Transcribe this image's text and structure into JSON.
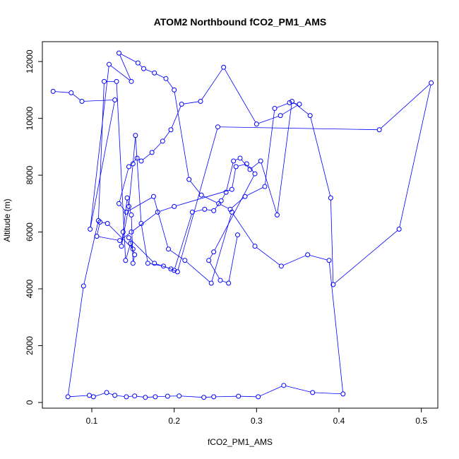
{
  "chart_data": {
    "type": "line",
    "title": "ATOM2 Northbound fCO2_PM1_AMS",
    "xlabel": "fCO2_PM1_AMS",
    "ylabel": "Altitude (m)",
    "xlim": [
      0.04,
      0.52
    ],
    "ylim": [
      -200,
      12700
    ],
    "x_ticks": [
      0.1,
      0.2,
      0.3,
      0.4,
      0.5
    ],
    "x_tick_labels": [
      "0.1",
      "0.2",
      "0.3",
      "0.4",
      "0.5"
    ],
    "y_ticks": [
      0,
      2000,
      4000,
      6000,
      8000,
      10000,
      12000
    ],
    "y_tick_labels": [
      "0",
      "2000",
      "4000",
      "6000",
      "8000",
      "10000",
      "12000"
    ],
    "grid": false,
    "legend": "none",
    "markers": "open-circle",
    "color": "#0000ff",
    "series": [
      {
        "x": [
          0.053,
          0.075,
          0.088,
          0.128,
          0.098,
          0.121,
          0.148,
          0.133,
          0.156,
          0.163,
          0.176,
          0.19,
          0.2,
          0.218,
          0.233,
          0.254,
          0.268,
          0.286,
          0.31,
          0.322,
          0.34,
          0.352,
          0.329,
          0.3,
          0.26,
          0.232,
          0.209,
          0.196,
          0.186,
          0.173,
          0.16,
          0.155,
          0.145,
          0.133,
          0.142,
          0.175,
          0.193,
          0.213,
          0.245,
          0.27,
          0.298,
          0.33,
          0.362,
          0.388,
          0.405,
          0.368,
          0.333,
          0.302,
          0.278,
          0.248,
          0.236,
          0.206,
          0.192,
          0.177,
          0.165,
          0.152,
          0.142,
          0.128,
          0.118,
          0.102,
          0.097,
          0.071,
          0.09,
          0.108,
          0.115,
          0.13,
          0.141,
          0.147,
          0.152,
          0.15,
          0.148,
          0.143,
          0.138,
          0.136,
          0.145,
          0.15,
          0.153,
          0.16,
          0.168,
          0.187,
          0.2,
          0.222,
          0.237,
          0.248,
          0.257,
          0.263,
          0.272,
          0.28,
          0.292,
          0.305,
          0.325,
          0.343,
          0.365,
          0.39,
          0.393,
          0.473,
          0.512,
          0.449,
          0.253,
          0.204,
          0.196,
          0.176,
          0.145,
          0.15,
          0.119,
          0.11,
          0.106,
          0.134,
          0.148,
          0.18,
          0.2,
          0.27,
          0.275,
          0.288,
          0.298,
          0.248,
          0.242,
          0.256,
          0.266,
          0.277
        ],
        "y": [
          10950,
          10900,
          10600,
          10650,
          6100,
          11900,
          11300,
          12300,
          11950,
          11750,
          11600,
          11400,
          11000,
          7850,
          7300,
          7000,
          6800,
          7250,
          7600,
          10350,
          10550,
          10500,
          10100,
          9800,
          11800,
          10600,
          10500,
          9600,
          9200,
          8800,
          8500,
          8600,
          8300,
          7000,
          6700,
          7250,
          5400,
          5000,
          4200,
          6700,
          5500,
          4800,
          5200,
          5000,
          300,
          350,
          600,
          200,
          220,
          200,
          180,
          230,
          220,
          200,
          180,
          230,
          200,
          250,
          350,
          200,
          250,
          200,
          4100,
          6400,
          11300,
          11300,
          5000,
          5600,
          5200,
          4900,
          6600,
          7200,
          6000,
          5500,
          6900,
          8400,
          9400,
          6300,
          4900,
          4800,
          4650,
          6700,
          6800,
          6750,
          7100,
          7400,
          8500,
          8600,
          8200,
          8500,
          6600,
          10600,
          10100,
          7200,
          4150,
          6100,
          11250,
          9600,
          9700,
          4600,
          4700,
          4900,
          5800,
          5400,
          6300,
          6350,
          5850,
          5700,
          6000,
          6700,
          6900,
          7500,
          8300,
          8400,
          8050,
          5300,
          5000,
          4300,
          4200,
          5900
        ]
      }
    ]
  }
}
